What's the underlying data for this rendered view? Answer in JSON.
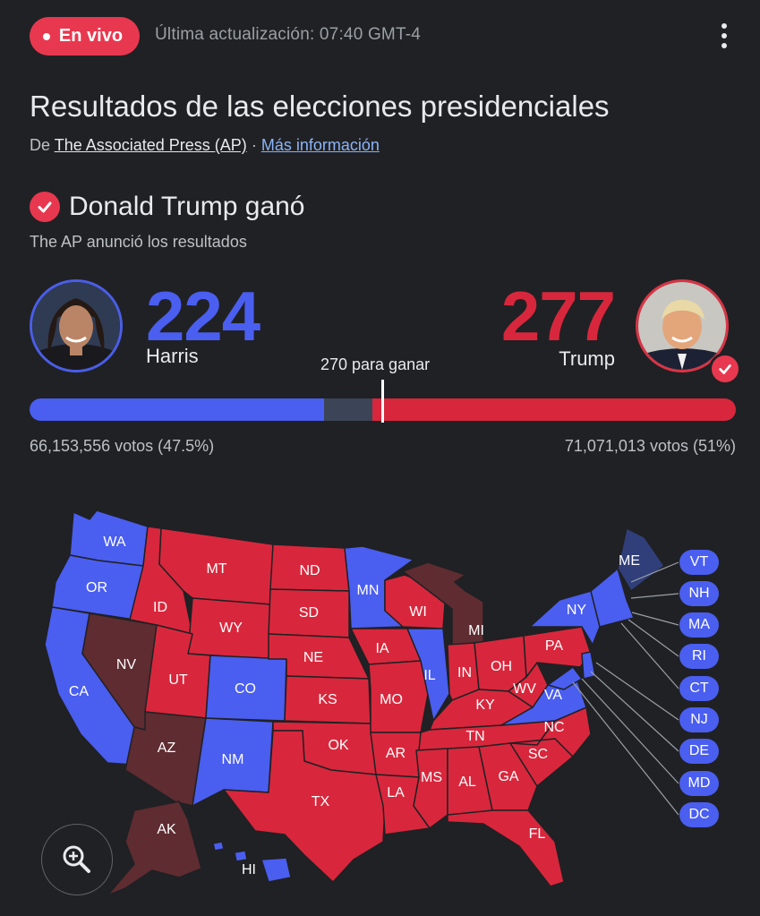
{
  "header": {
    "live_label": "En vivo",
    "updated": "Última actualización: 07:40 GMT-4",
    "menu_icon": "more-vert-icon"
  },
  "title": "Resultados de las elecciones presidenciales",
  "source": {
    "prefix": "De",
    "publisher": "The Associated Press (AP)",
    "separator": "·",
    "more_link": "Más información"
  },
  "winner": {
    "headline": "Donald Trump ganó",
    "subtext": "The AP anunció los resultados",
    "icon": "check-circle-icon"
  },
  "candidates": {
    "harris": {
      "name": "Harris",
      "electoral_votes": "224",
      "popular_votes": "66,153,556 votos (47.5%)",
      "color": "#4a5ef0"
    },
    "trump": {
      "name": "Trump",
      "electoral_votes": "277",
      "popular_votes": "71,071,013 votos (51%)",
      "color": "#d8273c"
    }
  },
  "to_win": "270 para ganar",
  "progress": {
    "harris": 224,
    "uncalled": 37,
    "trump": 277,
    "total": 538,
    "threshold": 270
  },
  "colors": {
    "dem": "#4a5ef0",
    "rep": "#d8273c",
    "rep_leaning": "#5e2c31",
    "dem_leaning": "#303f7a",
    "background": "#202124"
  },
  "map": {
    "states": {
      "WA": "WA",
      "OR": "OR",
      "CA": "CA",
      "NV": "NV",
      "ID": "ID",
      "MT": "MT",
      "WY": "WY",
      "UT": "UT",
      "AZ": "AZ",
      "CO": "CO",
      "NM": "NM",
      "ND": "ND",
      "SD": "SD",
      "NE": "NE",
      "KS": "KS",
      "OK": "OK",
      "TX": "TX",
      "MN": "MN",
      "IA": "IA",
      "MO": "MO",
      "AR": "AR",
      "LA": "LA",
      "WI": "WI",
      "IL": "IL",
      "MI": "MI",
      "IN": "IN",
      "OH": "OH",
      "KY": "KY",
      "TN": "TN",
      "MS": "MS",
      "AL": "AL",
      "GA": "GA",
      "FL": "FL",
      "SC": "SC",
      "NC": "NC",
      "VA": "VA",
      "WV": "WV",
      "PA": "PA",
      "NY": "NY",
      "ME": "ME",
      "AK": "AK",
      "HI": "HI"
    },
    "callouts": [
      "VT",
      "NH",
      "MA",
      "RI",
      "CT",
      "NJ",
      "DE",
      "MD",
      "DC"
    ],
    "zoom_icon": "zoom-in-icon"
  }
}
